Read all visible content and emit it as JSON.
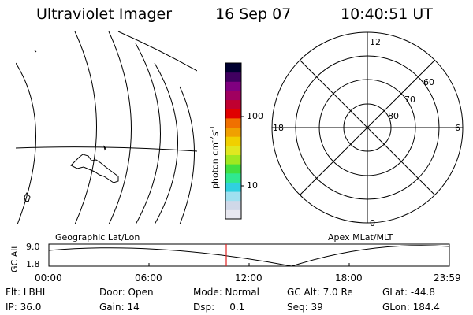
{
  "header": {
    "title": "Ultraviolet Imager",
    "date": "16 Sep 07",
    "time": "10:40:51 UT"
  },
  "colorbar": {
    "unit_label": "photon cm",
    "unit_exp1": "-2",
    "unit_mid": "s",
    "unit_exp2": "-1",
    "ticks": [
      "100",
      "10"
    ],
    "colors": [
      "#e8e8f0",
      "#d0d8e8",
      "#a0e0f0",
      "#30d0e0",
      "#30e890",
      "#40e040",
      "#a0e820",
      "#e0e820",
      "#f0d000",
      "#f0a000",
      "#f07000",
      "#e00000",
      "#c00030",
      "#a00060",
      "#800080",
      "#400060",
      "#000030"
    ]
  },
  "geo_panel": {
    "label": "Geographic Lat/Lon"
  },
  "polar_panel": {
    "label": "Apex MLat/MLT",
    "mlt_labels": {
      "top": "12",
      "left": "18",
      "right": "6",
      "bottom": "0"
    },
    "lat_labels": [
      "60",
      "70",
      "80"
    ]
  },
  "altitude_plot": {
    "ylabel": "GC Alt",
    "yticks": [
      "9.0",
      "1.8"
    ],
    "xticks": [
      "00:00",
      "06:00",
      "12:00",
      "18:00",
      "23:59"
    ],
    "marker_color": "#e02020"
  },
  "info": {
    "row1": [
      {
        "k": "Flt: LBHL"
      },
      {
        "k": "Door: Open"
      },
      {
        "k": "Mode: Normal"
      },
      {
        "k": "GC Alt: 7.0 Re"
      },
      {
        "k": "GLat: -44.8"
      }
    ],
    "row2": [
      {
        "k": "IP: 36.0"
      },
      {
        "k": "Gain: 14"
      },
      {
        "k": "Dsp:     0.1"
      },
      {
        "k": "Seq: 39"
      },
      {
        "k": "GLon: 184.4"
      }
    ]
  }
}
